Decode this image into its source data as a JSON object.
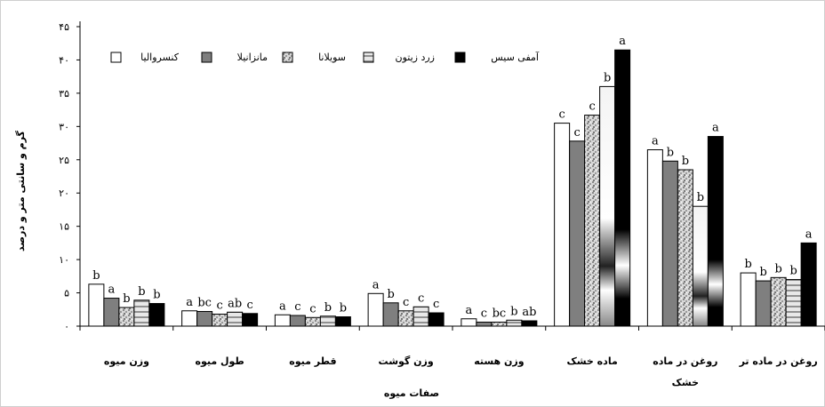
{
  "chart_data": {
    "type": "bar",
    "ylabel": "گرم و سانتی متر و درصد",
    "xlabel": "صفات میوه",
    "ylim": [
      0,
      45
    ],
    "yticks": [
      "۰",
      "۵",
      "۱۰",
      "۱۵",
      "۲۰",
      "۲۵",
      "۳۰",
      "۳۵",
      "۴۰",
      "۴۵"
    ],
    "categories": [
      "وزن میوه",
      "طول میوه",
      "قطر میوه",
      "وزن گوشت",
      "وزن هسته",
      "ماده خشک",
      "روغن در ماده خشک",
      "روغن در ماده تر"
    ],
    "series": [
      {
        "name": "کنسروالیا",
        "color": "#ffffff",
        "pattern": "white",
        "values": [
          6.3,
          2.3,
          1.7,
          4.9,
          1.1,
          30.5,
          26.5,
          8.0
        ],
        "letters": [
          "b",
          "a",
          "a",
          "a",
          "a",
          "c",
          "a",
          "b"
        ]
      },
      {
        "name": "مانزانیلا",
        "color": "#808080",
        "pattern": "gray",
        "values": [
          4.2,
          2.2,
          1.6,
          3.5,
          0.6,
          27.8,
          24.8,
          6.8
        ],
        "letters": [
          "a",
          "bc",
          "c",
          "b",
          "c",
          "c",
          "b",
          "b"
        ]
      },
      {
        "name": "سویلانا",
        "color": "#c0c0c0",
        "pattern": "speckle",
        "values": [
          2.8,
          1.8,
          1.3,
          2.3,
          0.6,
          31.7,
          23.5,
          7.3
        ],
        "letters": [
          "b",
          "c",
          "c",
          "c",
          "bc",
          "c",
          "b",
          "b"
        ]
      },
      {
        "name": "زرد زیتون",
        "color": "#a0a0a0",
        "pattern": "hstripe",
        "values": [
          3.9,
          2.1,
          1.5,
          2.9,
          0.9,
          36.0,
          18.0,
          7.0
        ],
        "letters": [
          "b",
          "ab",
          "b",
          "c",
          "b",
          "b",
          "b",
          "b"
        ]
      },
      {
        "name": "آمفی سیس",
        "color": "#000000",
        "pattern": "black",
        "values": [
          3.4,
          1.9,
          1.4,
          2.0,
          0.8,
          41.5,
          28.5,
          12.5
        ],
        "letters": [
          "b",
          "c",
          "b",
          "c",
          "ab",
          "a",
          "a",
          "a"
        ]
      }
    ],
    "grid": false,
    "legend_position": "top"
  }
}
